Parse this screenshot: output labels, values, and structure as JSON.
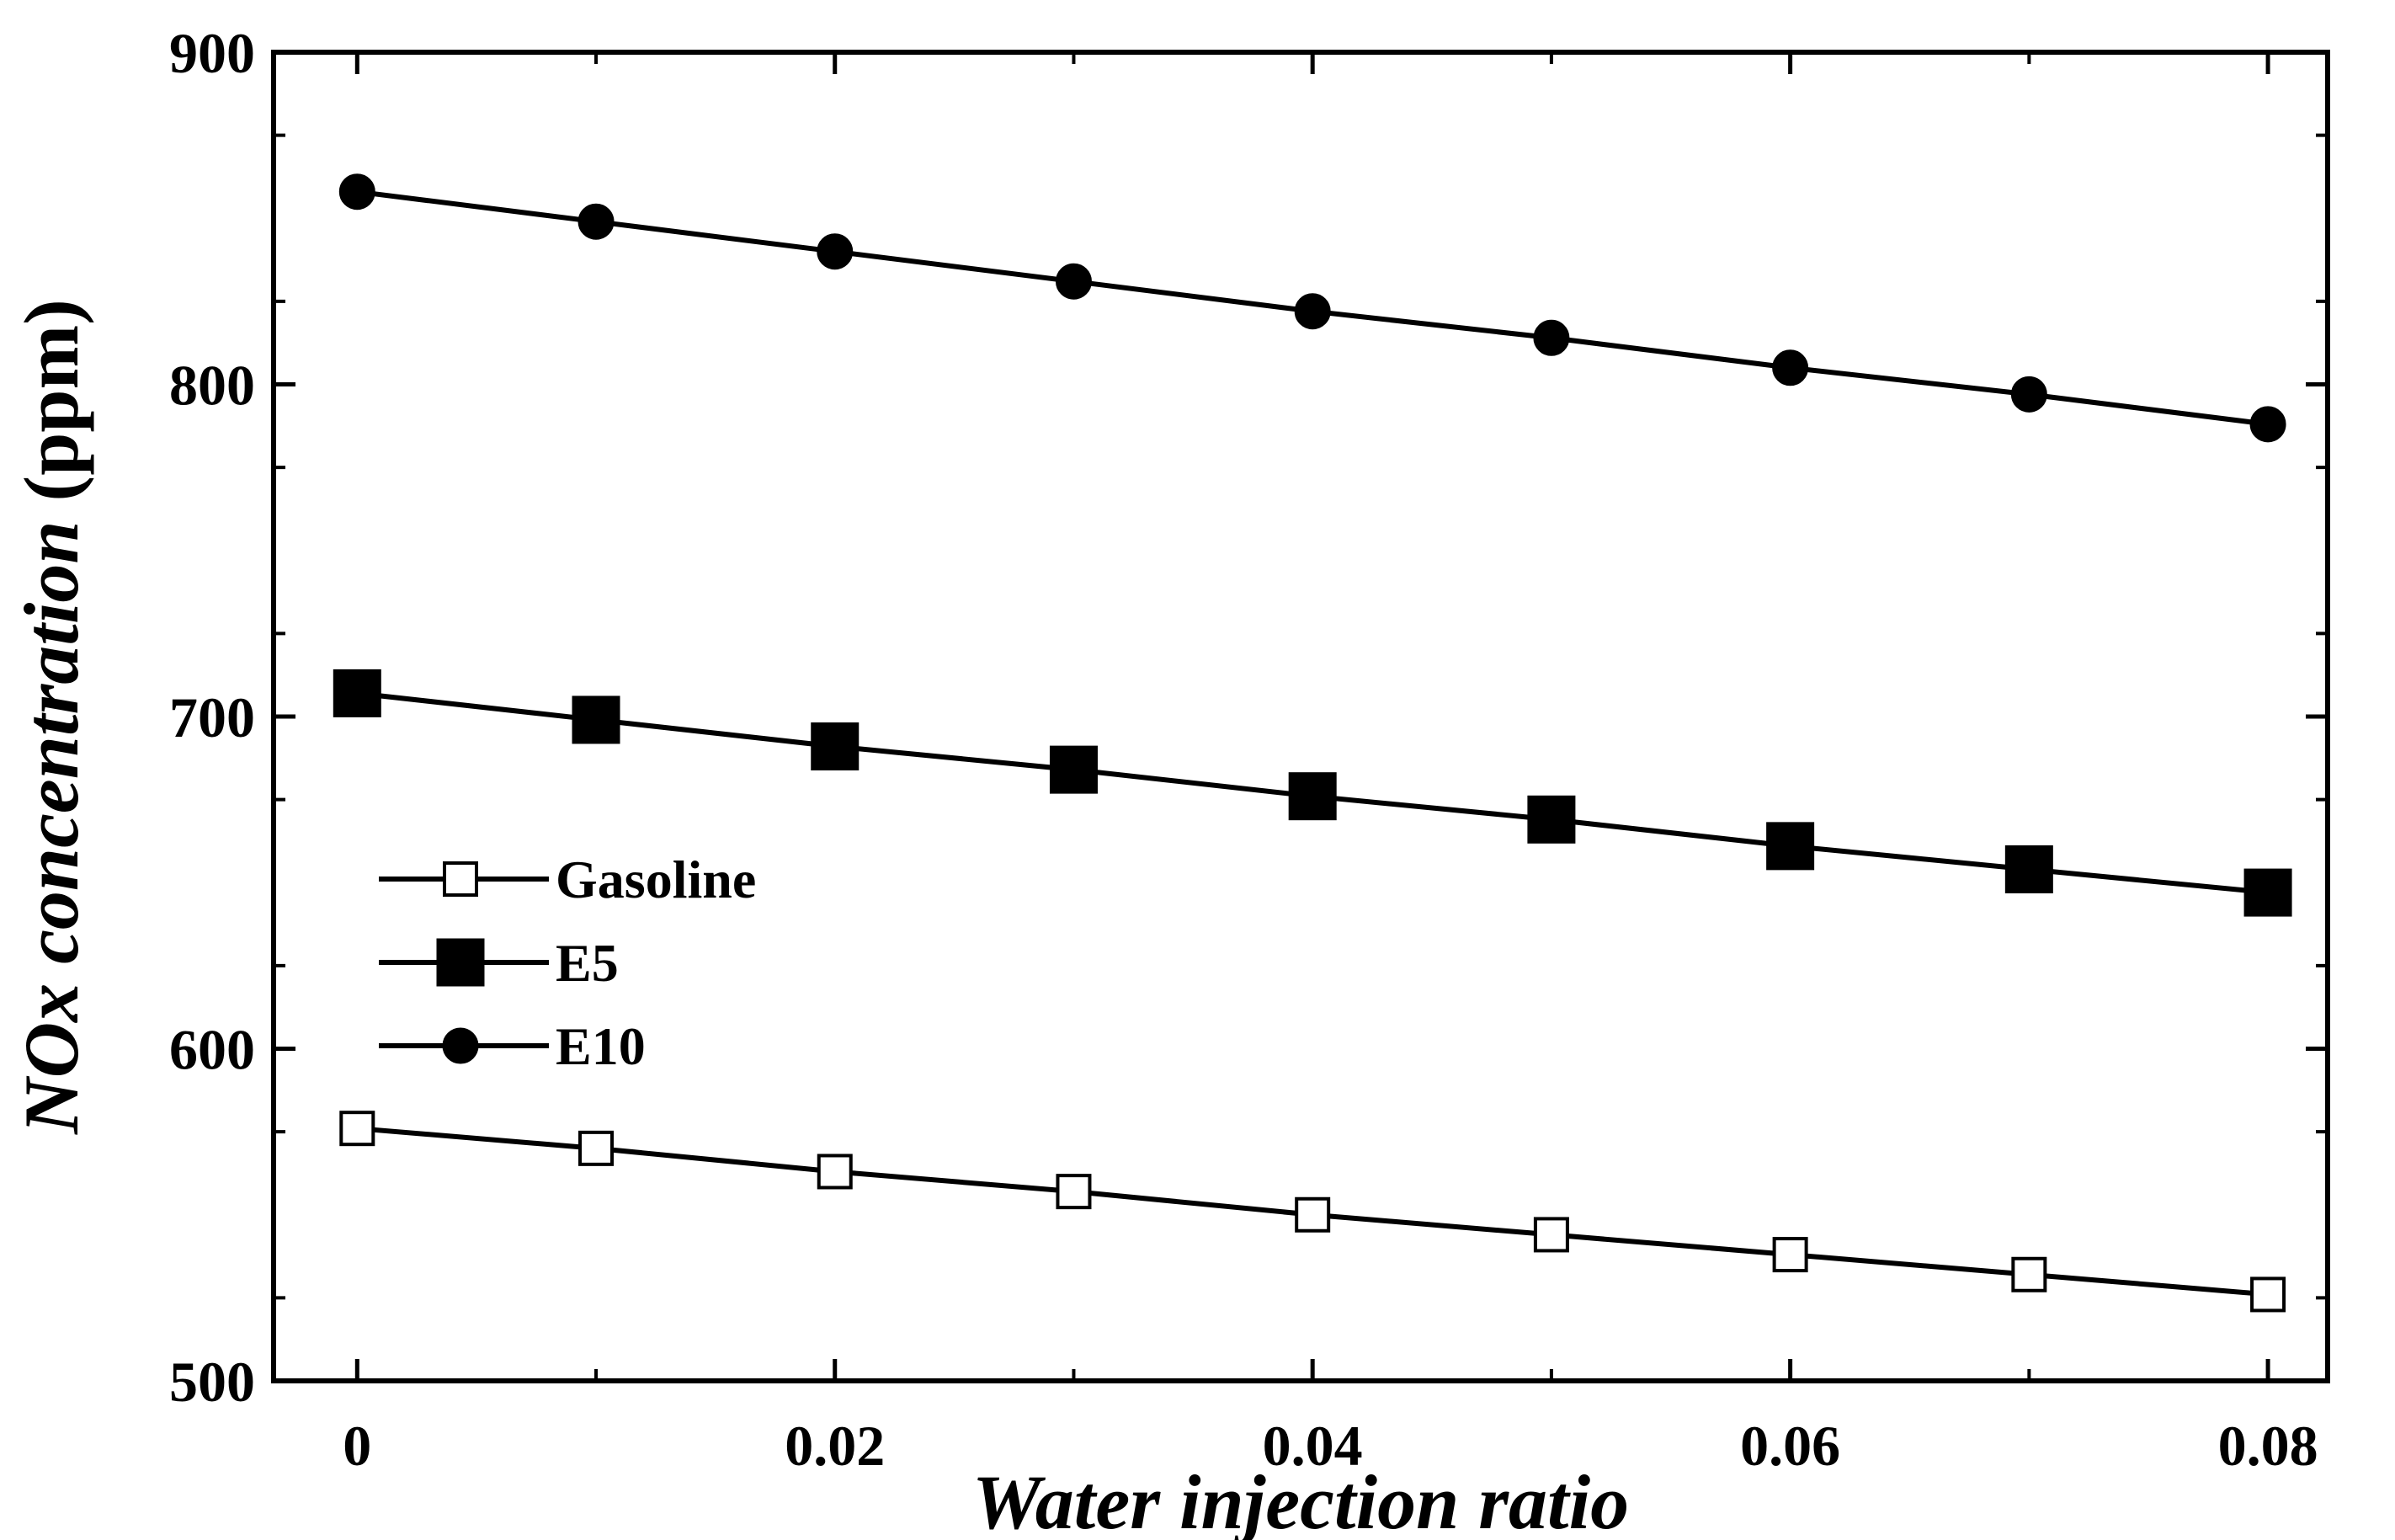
{
  "chart_data": {
    "type": "line",
    "title": "",
    "xlabel": "Water injection ratio",
    "ylabel_main": "NOx concentration",
    "ylabel_unit": " (ppm)",
    "xlim": [
      -0.0035,
      0.0825
    ],
    "ylim": [
      500,
      900
    ],
    "xticks": [
      0,
      0.02,
      0.04,
      0.06,
      0.08
    ],
    "xtick_labels": [
      "0",
      "0.02",
      "0.04",
      "0.06",
      "0.08"
    ],
    "yticks": [
      500,
      600,
      700,
      800,
      900
    ],
    "ytick_labels": [
      "500",
      "600",
      "700",
      "800",
      "900"
    ],
    "x": [
      0,
      0.01,
      0.02,
      0.03,
      0.04,
      0.05,
      0.06,
      0.07,
      0.08
    ],
    "series": [
      {
        "name": "Gasoline",
        "marker": "open-square",
        "values": [
          576,
          570,
          563,
          557,
          550,
          544,
          538,
          532,
          526
        ]
      },
      {
        "name": "E5",
        "marker": "filled-square",
        "values": [
          707,
          699,
          691,
          684,
          676,
          669,
          661,
          654,
          647
        ]
      },
      {
        "name": "E10",
        "marker": "filled-circle",
        "values": [
          858,
          849,
          840,
          831,
          822,
          814,
          805,
          797,
          788
        ]
      }
    ],
    "legend_position": "middle-left",
    "grid": false,
    "colors": {
      "line": "#000000",
      "marker_fill": "#000000",
      "open_fill": "#ffffff"
    }
  }
}
